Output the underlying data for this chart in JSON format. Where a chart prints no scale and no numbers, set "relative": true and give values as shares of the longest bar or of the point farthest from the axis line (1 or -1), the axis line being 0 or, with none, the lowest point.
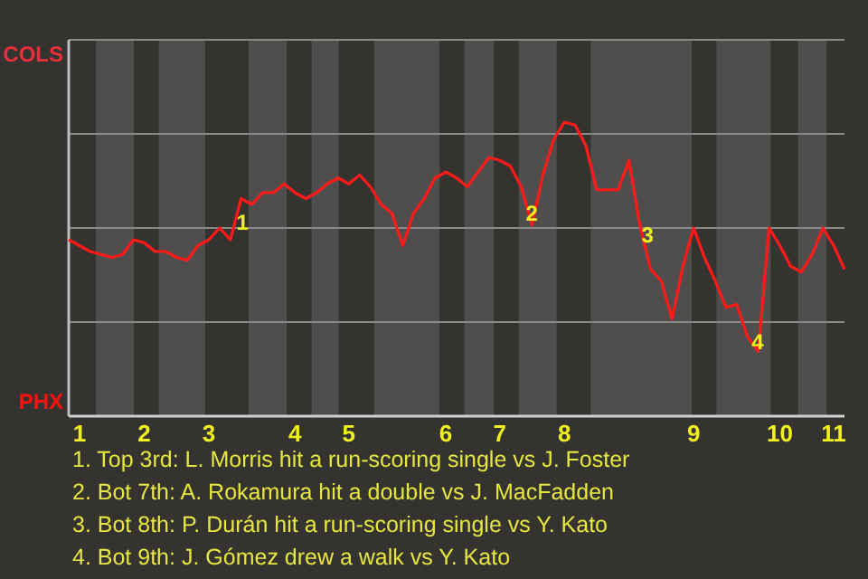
{
  "chart_data": {
    "type": "line",
    "relative": true,
    "categories": [
      null,
      "1",
      null,
      null,
      null,
      null,
      null,
      "2",
      null,
      null,
      null,
      null,
      null,
      "3",
      null,
      null,
      null,
      null,
      null,
      null,
      null,
      "4",
      null,
      null,
      null,
      null,
      "5",
      null,
      null,
      null,
      null,
      null,
      null,
      null,
      null,
      "6",
      null,
      null,
      null,
      null,
      "7",
      null,
      null,
      null,
      null,
      null,
      "8",
      null,
      null,
      null,
      null,
      null,
      null,
      null,
      null,
      null,
      null,
      null,
      "9",
      null,
      null,
      null,
      null,
      null,
      null,
      null,
      "10",
      null,
      null,
      null,
      null,
      "11",
      null
    ],
    "series": [
      {
        "color": "#ff1a1a",
        "values": [
          0.6,
          0.58,
          0.56,
          0.55,
          0.54,
          0.55,
          0.6,
          0.59,
          0.56,
          0.56,
          0.54,
          0.53,
          0.58,
          0.6,
          0.64,
          0.6,
          0.74,
          0.72,
          0.76,
          0.76,
          0.79,
          0.76,
          0.74,
          0.76,
          0.79,
          0.81,
          0.79,
          0.82,
          0.78,
          0.72,
          0.69,
          0.58,
          0.69,
          0.74,
          0.81,
          0.83,
          0.81,
          0.78,
          0.83,
          0.88,
          0.87,
          0.85,
          0.78,
          0.65,
          0.82,
          0.94,
          1,
          0.99,
          0.92,
          0.77,
          0.77,
          0.77,
          0.87,
          0.65,
          0.5,
          0.46,
          0.33,
          0.51,
          0.64,
          0.54,
          0.46,
          0.37,
          0.38,
          0.27,
          0.22,
          0.64,
          0.58,
          0.51,
          0.49,
          0.55,
          0.64,
          0.58,
          0.5
        ]
      }
    ],
    "grid": "y",
    "annotations": [
      "COLS",
      "PHX",
      "1",
      "2",
      "3",
      "4",
      "1. Top 3rd: L. Morris hit a run-scoring single vs J. Foster",
      "2. Bot 7th: A. Rokamura hit a double vs J. MacFadden",
      "3. Bot 8th: P. Durán hit a run-scoring single vs Y. Kato",
      "4. Bot 9th: J. Gómez drew a walk vs Y. Kato"
    ]
  }
}
